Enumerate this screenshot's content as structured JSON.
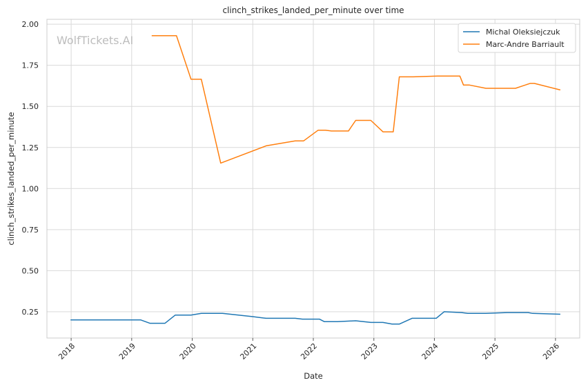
{
  "chart_data": {
    "type": "line",
    "title": "clinch_strikes_landed_per_minute over time",
    "xlabel": "Date",
    "ylabel": "clinch_strikes_landed_per_minute",
    "xlim": [
      2017.6,
      2026.4
    ],
    "ylim": [
      0.09,
      2.03
    ],
    "x_ticks": [
      2018,
      2019,
      2020,
      2021,
      2022,
      2023,
      2024,
      2025,
      2026
    ],
    "x_tick_labels": [
      "2018",
      "2019",
      "2020",
      "2021",
      "2022",
      "2023",
      "2024",
      "2025",
      "2026"
    ],
    "y_ticks": [
      0.25,
      0.5,
      0.75,
      1.0,
      1.25,
      1.5,
      1.75,
      2.0
    ],
    "y_tick_labels": [
      "0.25",
      "0.50",
      "0.75",
      "1.00",
      "1.25",
      "1.50",
      "1.75",
      "2.00"
    ],
    "grid": true,
    "legend_position": "top-right",
    "watermark": "WolfTickets.AI",
    "series": [
      {
        "name": "Michal Oleksiejczuk",
        "color": "#1f77b4",
        "x": [
          2017.99,
          2019.15,
          2019.3,
          2019.55,
          2019.72,
          2019.98,
          2020.15,
          2020.5,
          2021.0,
          2021.22,
          2021.7,
          2021.82,
          2022.1,
          2022.18,
          2022.4,
          2022.7,
          2022.95,
          2023.15,
          2023.3,
          2023.42,
          2023.63,
          2024.03,
          2024.16,
          2024.45,
          2024.55,
          2024.85,
          2025.2,
          2025.55,
          2025.62,
          2026.08
        ],
        "y": [
          0.2,
          0.2,
          0.18,
          0.18,
          0.23,
          0.23,
          0.24,
          0.24,
          0.22,
          0.21,
          0.21,
          0.205,
          0.205,
          0.19,
          0.19,
          0.195,
          0.185,
          0.185,
          0.175,
          0.175,
          0.21,
          0.21,
          0.25,
          0.245,
          0.24,
          0.24,
          0.245,
          0.245,
          0.24,
          0.235
        ]
      },
      {
        "name": "Marc-Andre Barriault",
        "color": "#ff7f0e",
        "x": [
          2019.33,
          2019.74,
          2019.98,
          2020.15,
          2020.47,
          2021.22,
          2021.7,
          2021.84,
          2022.08,
          2022.2,
          2022.3,
          2022.58,
          2022.7,
          2022.95,
          2023.15,
          2023.32,
          2023.42,
          2023.65,
          2024.05,
          2024.42,
          2024.48,
          2024.58,
          2024.85,
          2025.34,
          2025.58,
          2025.65,
          2026.08
        ],
        "y": [
          1.93,
          1.93,
          1.665,
          1.665,
          1.155,
          1.26,
          1.29,
          1.29,
          1.355,
          1.355,
          1.35,
          1.35,
          1.415,
          1.415,
          1.345,
          1.345,
          1.68,
          1.68,
          1.685,
          1.685,
          1.63,
          1.63,
          1.61,
          1.61,
          1.64,
          1.64,
          1.6
        ]
      }
    ]
  }
}
